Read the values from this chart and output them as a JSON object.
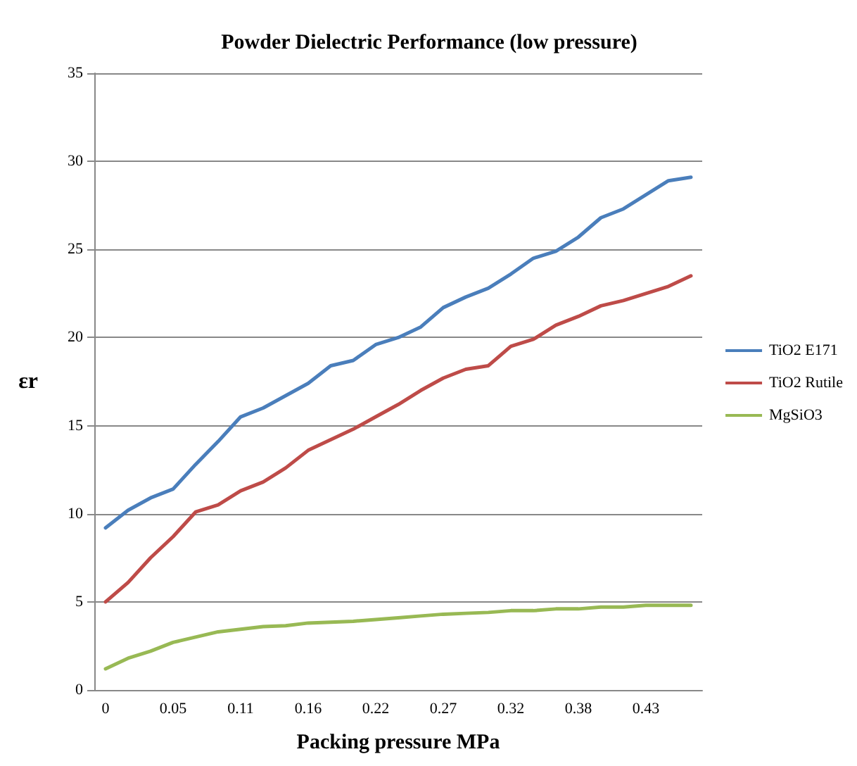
{
  "chart_data": {
    "type": "line",
    "title": "Powder Dielectric Performance (low pressure)",
    "xlabel": "Packing pressure MPa",
    "ylabel": "εr",
    "categories": [
      "0",
      null,
      null,
      "0.05",
      null,
      null,
      "0.11",
      null,
      null,
      "0.16",
      null,
      null,
      "0.22",
      null,
      null,
      "0.27",
      null,
      null,
      "0.32",
      null,
      null,
      "0.38",
      null,
      null,
      "0.43",
      null,
      null
    ],
    "series": [
      {
        "name": "TiO2 E171",
        "color": "#4a7ebb",
        "values": [
          9.2,
          10.2,
          10.9,
          11.4,
          12.8,
          14.1,
          15.5,
          16.0,
          16.7,
          17.4,
          18.4,
          18.7,
          19.6,
          20.0,
          20.6,
          21.7,
          22.3,
          22.8,
          23.6,
          24.5,
          24.9,
          25.7,
          26.8,
          27.3,
          28.1,
          28.9,
          29.1
        ]
      },
      {
        "name": "TiO2 Rutile",
        "color": "#be4b48",
        "values": [
          5.0,
          6.1,
          7.5,
          8.7,
          10.1,
          10.5,
          11.3,
          11.8,
          12.6,
          13.6,
          14.2,
          14.8,
          15.5,
          16.2,
          17.0,
          17.7,
          18.2,
          18.4,
          19.5,
          19.9,
          20.7,
          21.2,
          21.8,
          22.1,
          22.5,
          22.9,
          23.5
        ]
      },
      {
        "name": "MgSiO3",
        "color": "#98b954",
        "values": [
          1.2,
          1.8,
          2.2,
          2.7,
          3.0,
          3.3,
          3.45,
          3.6,
          3.65,
          3.8,
          3.85,
          3.9,
          4.0,
          4.1,
          4.2,
          4.3,
          4.35,
          4.4,
          4.5,
          4.5,
          4.6,
          4.6,
          4.7,
          4.7,
          4.8,
          4.8,
          4.8
        ]
      }
    ],
    "ylim": [
      0,
      35
    ],
    "yticks": [
      0,
      5,
      10,
      15,
      20,
      25,
      30,
      35
    ],
    "grid": "y",
    "legend": "right",
    "marker": "none",
    "line_style": "solid"
  }
}
